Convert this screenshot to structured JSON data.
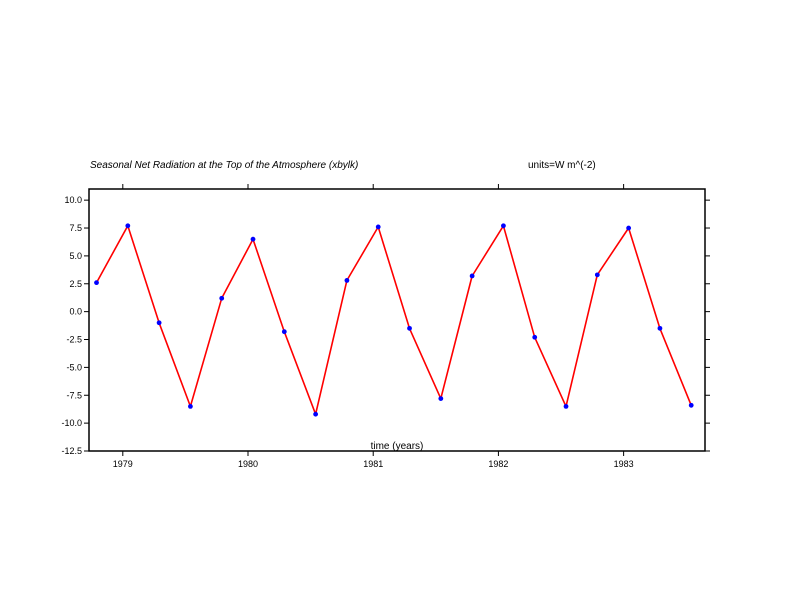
{
  "chart_data": {
    "type": "line",
    "title": "Seasonal Net Radiation at the Top of the Atmosphere (xbylk)",
    "units": "units=W m^(-2)",
    "xlabel": "time (years)",
    "ylabel": "",
    "xlim": [
      1978.73,
      1983.65
    ],
    "ylim": [
      -12.5,
      11.0
    ],
    "x_ticks": [
      1979,
      1980,
      1981,
      1982,
      1983
    ],
    "x_tick_labels": [
      "1979",
      "1980",
      "1981",
      "1982",
      "1983"
    ],
    "y_ticks": [
      -12.5,
      -10.0,
      -7.5,
      -5.0,
      -2.5,
      0.0,
      2.5,
      5.0,
      7.5,
      10.0
    ],
    "y_tick_labels": [
      "-12.5",
      "-10.0",
      "-7.5",
      "-5.0",
      "-2.5",
      "0.0",
      "2.5",
      "5.0",
      "7.5",
      "10.0"
    ],
    "grid": false,
    "series": [
      {
        "line_color": "#ff0000",
        "marker_color": "#0000ff",
        "x": [
          1978.79,
          1979.04,
          1979.29,
          1979.54,
          1979.79,
          1980.04,
          1980.29,
          1980.54,
          1980.79,
          1981.04,
          1981.29,
          1981.54,
          1981.79,
          1982.04,
          1982.29,
          1982.54,
          1982.79,
          1983.04,
          1983.29,
          1983.54
        ],
        "y": [
          2.6,
          7.7,
          -1.0,
          -8.5,
          1.2,
          6.5,
          -1.8,
          -9.2,
          2.8,
          7.6,
          -1.5,
          -7.8,
          3.2,
          7.7,
          -2.3,
          -8.5,
          3.3,
          7.5,
          -1.5,
          -8.4
        ]
      }
    ]
  }
}
